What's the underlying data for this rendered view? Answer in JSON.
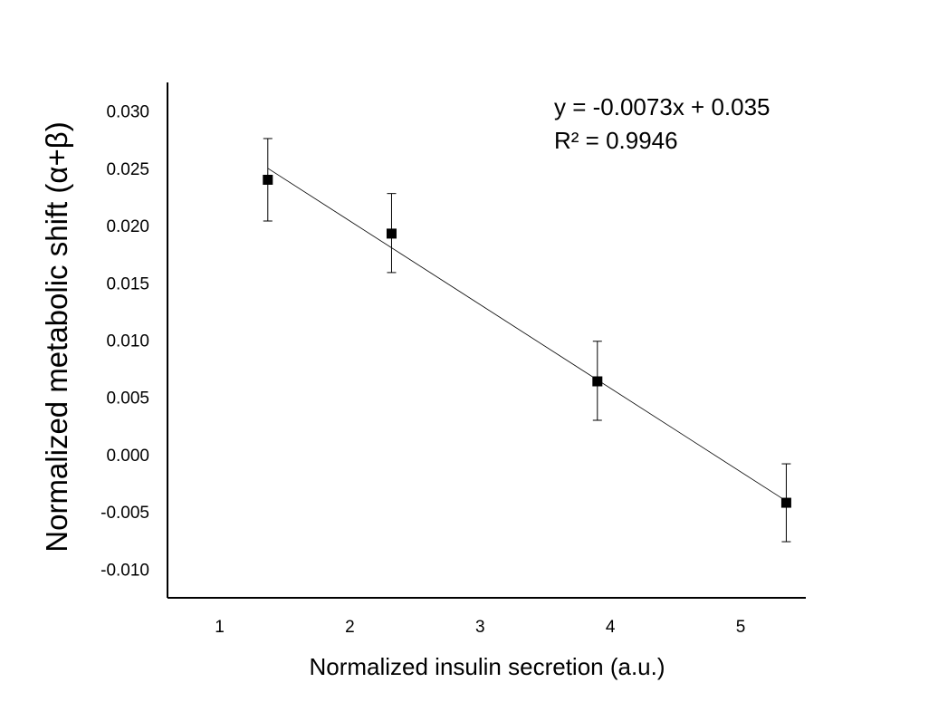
{
  "chart_data": {
    "type": "scatter",
    "xlabel": "Normalized insulin secretion (a.u.)",
    "ylabel": "Normalized metabolic shift (α+β)",
    "xlim": [
      0.6,
      5.5
    ],
    "ylim": [
      -0.0125,
      0.0325
    ],
    "x_ticks": [
      1,
      2,
      3,
      4,
      5
    ],
    "x_tick_labels": [
      "1",
      "2",
      "3",
      "4",
      "5"
    ],
    "y_ticks": [
      0.03,
      0.025,
      0.02,
      0.015,
      0.01,
      0.005,
      0.0,
      -0.005,
      -0.01
    ],
    "y_tick_labels": [
      "0.030",
      "0.025",
      "0.020",
      "0.015",
      "0.010",
      "0.005",
      "0.000",
      "-0.005",
      "-0.010"
    ],
    "grid": false,
    "series": [
      {
        "marker": "square",
        "color": "#000000",
        "points": [
          {
            "x": 1.37,
            "y": 0.024,
            "err_low": 0.0204,
            "err_high": 0.0276
          },
          {
            "x": 2.32,
            "y": 0.0193,
            "err_low": 0.0159,
            "err_high": 0.0228
          },
          {
            "x": 3.9,
            "y": 0.0064,
            "err_low": 0.003,
            "err_high": 0.0099
          },
          {
            "x": 5.35,
            "y": -0.0042,
            "err_low": -0.0076,
            "err_high": -0.0008
          }
        ]
      }
    ],
    "trendline": {
      "type": "linear",
      "slope": -0.0073,
      "intercept": 0.035,
      "x_range": [
        1.37,
        5.35
      ]
    },
    "annotations": {
      "equation": "y = -0.0073x + 0.035",
      "r_squared": "R² = 0.9946"
    }
  }
}
